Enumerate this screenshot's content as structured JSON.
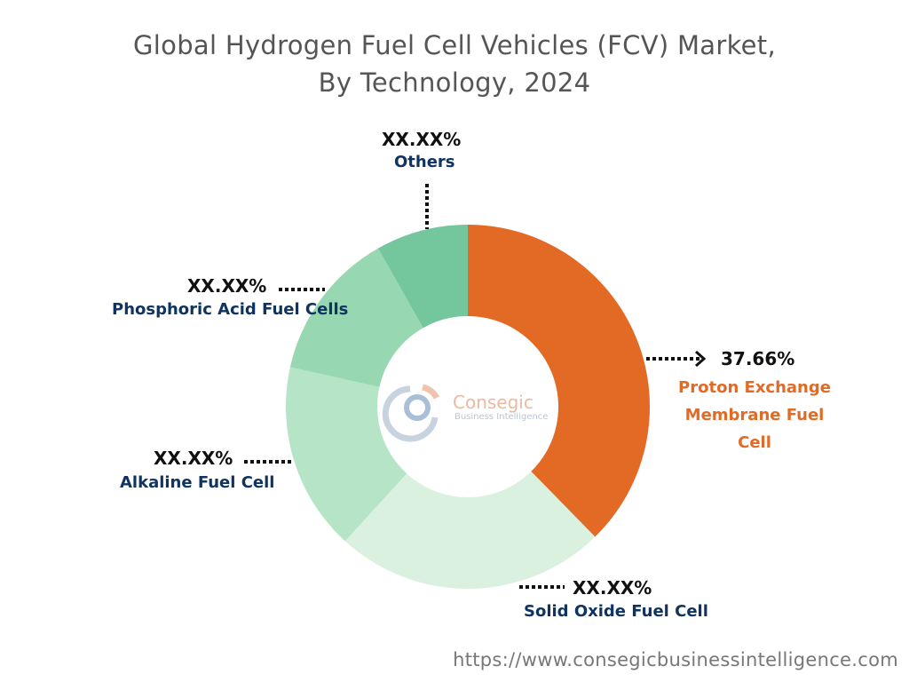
{
  "chart_data": {
    "type": "pie",
    "donut": true,
    "title": "Global Hydrogen Fuel Cell Vehicles (FCV) Market, By Technology, 2024",
    "title_lines": [
      "Global Hydrogen Fuel Cell Vehicles (FCV) Market,",
      "By Technology, 2024"
    ],
    "slices": [
      {
        "name": "Proton Exchange Membrane Fuel Cell",
        "value": 37.66,
        "label": "37.66%",
        "color": "#E36A25"
      },
      {
        "name": "Solid Oxide Fuel Cell",
        "value": 24.1,
        "label": "XX.XX%",
        "color": "#DAF1DF"
      },
      {
        "name": "Alkaline Fuel Cell",
        "value": 16.7,
        "label": "XX.XX%",
        "color": "#B5E4C6"
      },
      {
        "name": "Phosphoric Acid Fuel Cells",
        "value": 13.3,
        "label": "XX.XX%",
        "color": "#97D7B1"
      },
      {
        "name": "Others",
        "value": 8.2,
        "label": "XX.XX%",
        "color": "#74C69D"
      }
    ]
  },
  "logo": {
    "name": "Consegic",
    "tagline": "Business Intelligence"
  },
  "footer_url": "https://www.consegicbusinessintelligence.com"
}
